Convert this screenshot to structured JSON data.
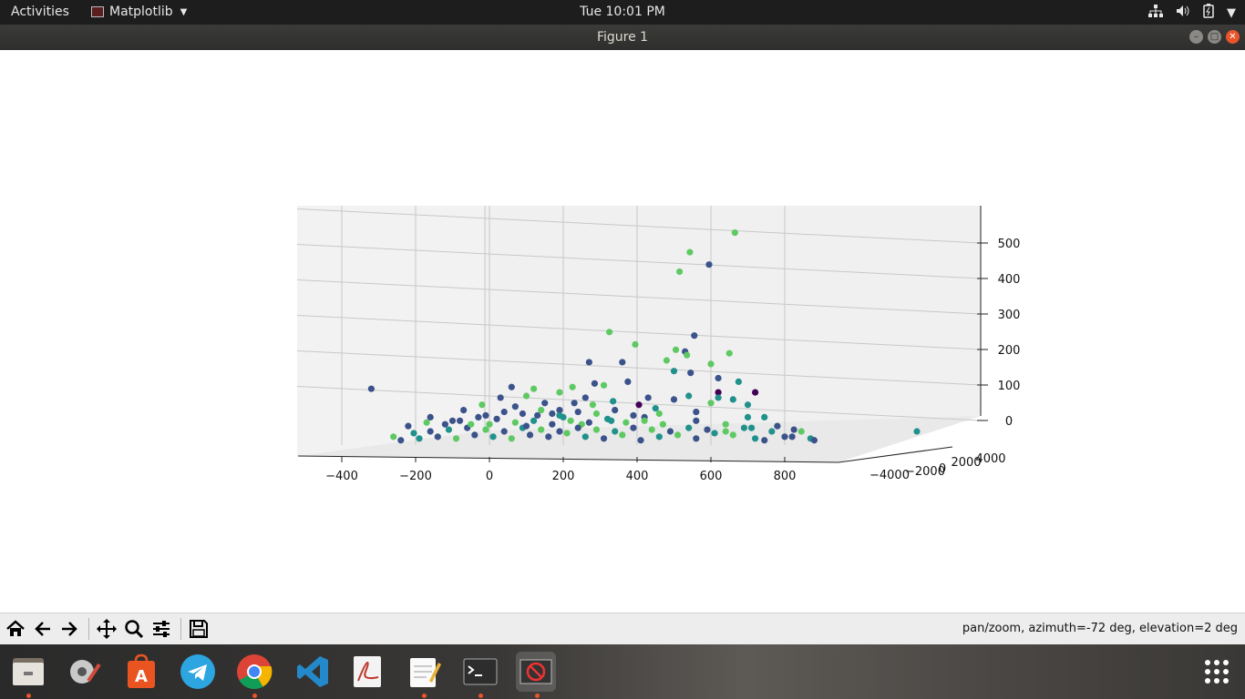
{
  "topbar": {
    "activities": "Activities",
    "app_name": "Matplotlib",
    "clock": "Tue 10:01 PM",
    "tray_icons": [
      "network-icon",
      "volume-icon",
      "battery-icon",
      "system-menu-icon"
    ]
  },
  "window": {
    "title": "Figure 1"
  },
  "toolbar": {
    "buttons": [
      "home-icon",
      "back-icon",
      "forward-icon",
      "pan-icon",
      "zoom-icon",
      "configure-subplots-icon",
      "save-icon"
    ],
    "status": "pan/zoom, azimuth=-72 deg, elevation=2 deg"
  },
  "dock": {
    "apps": [
      "files-icon",
      "system-settings-icon",
      "software-center-icon",
      "telegram-icon",
      "chrome-icon",
      "vscode-icon",
      "document-viewer-icon",
      "text-editor-icon",
      "terminal-icon",
      "matplotlib-figure-icon",
      "show-apps-icon"
    ]
  },
  "colors": {
    "topbar": "#1d1d1d",
    "titlebar": "#2e2e2c",
    "close_button": "#e9542a",
    "viridis": [
      "#440154",
      "#3b528b",
      "#21918c",
      "#5ec962",
      "#fde725"
    ]
  },
  "chart_data": {
    "type": "scatter",
    "projection": "3d",
    "view": {
      "azimuth": -72,
      "elevation": 2
    },
    "x_ticks": [
      "−400",
      "−200",
      "0",
      "200",
      "400",
      "600",
      "800"
    ],
    "y_ticks": [
      "−4000",
      "−2000",
      "0",
      "2000",
      "4000"
    ],
    "z_ticks": [
      "0",
      "100",
      "200",
      "300",
      "400",
      "500"
    ],
    "xlim": [
      -500,
      950
    ],
    "zlim": [
      -30,
      580
    ],
    "grid": true,
    "color_map": "viridis",
    "points": [
      [
        665,
        560,
        0.75
      ],
      [
        543,
        505,
        0.7
      ],
      [
        515,
        450,
        0.7
      ],
      [
        595,
        470,
        0.25
      ],
      [
        555,
        270,
        0.25
      ],
      [
        325,
        280,
        0.7
      ],
      [
        530,
        225,
        0.3
      ],
      [
        505,
        230,
        0.75
      ],
      [
        395,
        245,
        0.7
      ],
      [
        535,
        215,
        0.8
      ],
      [
        600,
        190,
        0.7
      ],
      [
        650,
        220,
        0.75
      ],
      [
        480,
        200,
        0.8
      ],
      [
        360,
        195,
        0.25
      ],
      [
        270,
        195,
        0.3
      ],
      [
        545,
        165,
        0.35
      ],
      [
        500,
        170,
        0.4
      ],
      [
        620,
        150,
        0.3
      ],
      [
        675,
        140,
        0.45
      ],
      [
        620,
        110,
        0.05
      ],
      [
        720,
        110,
        0.1
      ],
      [
        375,
        140,
        0.3
      ],
      [
        310,
        130,
        0.8
      ],
      [
        190,
        110,
        0.75
      ],
      [
        230,
        80,
        0.3
      ],
      [
        170,
        50,
        0.35
      ],
      [
        190,
        60,
        0.25
      ],
      [
        620,
        95,
        0.4
      ],
      [
        540,
        100,
        0.6
      ],
      [
        500,
        90,
        0.2
      ],
      [
        600,
        80,
        0.85
      ],
      [
        660,
        90,
        0.55
      ],
      [
        700,
        75,
        0.4
      ],
      [
        130,
        45,
        0.3
      ],
      [
        405,
        75,
        0.1
      ],
      [
        450,
        65,
        0.55
      ],
      [
        460,
        50,
        0.75
      ],
      [
        420,
        40,
        0.3
      ],
      [
        420,
        30,
        0.85
      ],
      [
        470,
        20,
        0.65
      ],
      [
        330,
        30,
        0.4
      ],
      [
        250,
        20,
        0.7
      ],
      [
        560,
        30,
        0.3
      ],
      [
        640,
        20,
        0.85
      ],
      [
        700,
        40,
        0.45
      ],
      [
        745,
        40,
        0.4
      ],
      [
        710,
        10,
        0.5
      ],
      [
        780,
        15,
        0.3
      ],
      [
        825,
        5,
        0.35
      ],
      [
        845,
        0,
        0.75
      ],
      [
        820,
        -15,
        0.3
      ],
      [
        870,
        -20,
        0.4
      ],
      [
        880,
        -25,
        0.3
      ],
      [
        800,
        -15,
        0.35
      ],
      [
        765,
        0,
        0.45
      ],
      [
        745,
        -25,
        0.3
      ],
      [
        720,
        -20,
        0.6
      ],
      [
        660,
        -10,
        0.8
      ],
      [
        610,
        -5,
        0.45
      ],
      [
        560,
        -20,
        0.3
      ],
      [
        510,
        -10,
        0.75
      ],
      [
        460,
        -15,
        0.4
      ],
      [
        410,
        -25,
        0.35
      ],
      [
        360,
        -10,
        0.7
      ],
      [
        310,
        -20,
        0.3
      ],
      [
        260,
        -15,
        0.45
      ],
      [
        210,
        -5,
        0.8
      ],
      [
        160,
        -15,
        0.3
      ],
      [
        110,
        -10,
        0.35
      ],
      [
        60,
        -20,
        0.75
      ],
      [
        10,
        -15,
        0.4
      ],
      [
        -40,
        -10,
        0.3
      ],
      [
        -90,
        -20,
        0.7
      ],
      [
        -140,
        -15,
        0.35
      ],
      [
        -190,
        -20,
        0.45
      ],
      [
        -240,
        -25,
        0.3
      ],
      [
        -260,
        -15,
        0.75
      ],
      [
        -205,
        -5,
        0.4
      ],
      [
        -160,
        0,
        0.3
      ],
      [
        -110,
        5,
        0.6
      ],
      [
        -60,
        10,
        0.35
      ],
      [
        -10,
        5,
        0.8
      ],
      [
        40,
        0,
        0.3
      ],
      [
        90,
        10,
        0.45
      ],
      [
        140,
        5,
        0.7
      ],
      [
        190,
        0,
        0.3
      ],
      [
        240,
        10,
        0.35
      ],
      [
        290,
        5,
        0.75
      ],
      [
        340,
        0,
        0.4
      ],
      [
        390,
        10,
        0.3
      ],
      [
        440,
        5,
        0.7
      ],
      [
        490,
        0,
        0.35
      ],
      [
        540,
        10,
        0.45
      ],
      [
        590,
        5,
        0.3
      ],
      [
        640,
        0,
        0.75
      ],
      [
        690,
        10,
        0.4
      ],
      [
        20,
        35,
        0.3
      ],
      [
        70,
        25,
        0.75
      ],
      [
        120,
        30,
        0.4
      ],
      [
        170,
        20,
        0.3
      ],
      [
        220,
        30,
        0.7
      ],
      [
        270,
        25,
        0.35
      ],
      [
        320,
        35,
        0.45
      ],
      [
        370,
        25,
        0.8
      ],
      [
        40,
        55,
        0.35
      ],
      [
        90,
        50,
        0.3
      ],
      [
        140,
        60,
        0.75
      ],
      [
        190,
        45,
        0.4
      ],
      [
        240,
        55,
        0.3
      ],
      [
        290,
        50,
        0.7
      ],
      [
        340,
        60,
        0.35
      ],
      [
        390,
        45,
        0.3
      ],
      [
        -30,
        40,
        0.35
      ],
      [
        -80,
        30,
        0.3
      ],
      [
        -20,
        75,
        0.75
      ],
      [
        70,
        70,
        0.3
      ],
      [
        30,
        95,
        0.3
      ],
      [
        100,
        100,
        0.7
      ],
      [
        260,
        95,
        0.35
      ],
      [
        -50,
        20,
        0.8
      ],
      [
        -120,
        20,
        0.3
      ],
      [
        -100,
        30,
        0.35
      ],
      [
        0,
        20,
        0.65
      ],
      [
        150,
        80,
        0.3
      ],
      [
        280,
        75,
        0.75
      ],
      [
        335,
        85,
        0.4
      ],
      [
        200,
        40,
        0.55
      ],
      [
        100,
        15,
        0.3
      ],
      [
        -170,
        25,
        0.75
      ],
      [
        -70,
        60,
        0.3
      ],
      [
        430,
        95,
        0.35
      ],
      [
        560,
        55,
        0.3
      ],
      [
        -320,
        120,
        0.3
      ],
      [
        -160,
        40,
        0.3
      ],
      [
        -220,
        15,
        0.35
      ],
      [
        -10,
        45,
        0.25
      ],
      [
        120,
        120,
        0.7
      ],
      [
        60,
        125,
        0.35
      ],
      [
        225,
        125,
        0.7
      ],
      [
        285,
        135,
        0.3
      ]
    ]
  }
}
